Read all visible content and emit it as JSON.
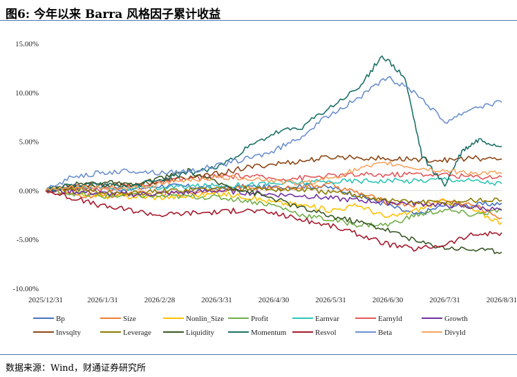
{
  "header": {
    "title": "图6: 今年以来 Barra 风格因子累计收益"
  },
  "footer": {
    "source": "数据来源：Wind，财通证券研究所"
  },
  "chart_data": {
    "type": "line",
    "title": "图6: 今年以来 Barra 风格因子累计收益",
    "xlabel": "",
    "ylabel": "",
    "x_ticks": [
      "2025/12/31",
      "2026/1/31",
      "2026/2/28",
      "2026/3/31",
      "2026/4/30",
      "2026/5/31",
      "2026/6/30",
      "2026/7/31",
      "2026/8/31"
    ],
    "y_ticks": [
      "15.00%",
      "10.00%",
      "5.00%",
      "0.00%",
      "-5.00%",
      "-10.00%"
    ],
    "ylim": [
      -10,
      15
    ],
    "grid": false,
    "legend_position": "bottom",
    "series": [
      {
        "name": "Bp",
        "color": "#4472c4",
        "points": [
          [
            0,
            0
          ],
          [
            0.5,
            0.4
          ],
          [
            1,
            0.3
          ],
          [
            1.5,
            0.1
          ],
          [
            2,
            0.5
          ],
          [
            2.5,
            0.4
          ],
          [
            3,
            0.2
          ],
          [
            3.5,
            0.4
          ],
          [
            4,
            0.3
          ],
          [
            4.5,
            0.5
          ],
          [
            5,
            0.3
          ],
          [
            5.5,
            -0.5
          ],
          [
            6,
            -1.5
          ],
          [
            6.5,
            -2.5
          ],
          [
            7,
            -1.5
          ],
          [
            7.5,
            -1.5
          ],
          [
            8,
            -1.3
          ]
        ]
      },
      {
        "name": "Size",
        "color": "#ed7d31",
        "points": [
          [
            0,
            0
          ],
          [
            0.5,
            -0.5
          ],
          [
            1,
            -0.6
          ],
          [
            1.5,
            -0.3
          ],
          [
            2,
            -0.4
          ],
          [
            2.5,
            -0.2
          ],
          [
            3,
            0.1
          ],
          [
            3.5,
            0.3
          ],
          [
            4,
            0.2
          ],
          [
            4.5,
            0.4
          ],
          [
            5,
            0.6
          ],
          [
            5.5,
            -0.3
          ],
          [
            6,
            -1.2
          ],
          [
            6.5,
            -1.5
          ],
          [
            7,
            -1.0
          ],
          [
            7.5,
            -1.5
          ],
          [
            8,
            -2.8
          ]
        ]
      },
      {
        "name": "Nonlin_Size",
        "color": "#ffc000",
        "points": [
          [
            0,
            0
          ],
          [
            0.5,
            -0.2
          ],
          [
            1,
            -0.6
          ],
          [
            1.5,
            -0.6
          ],
          [
            2,
            -0.7
          ],
          [
            2.5,
            -0.6
          ],
          [
            3,
            -0.3
          ],
          [
            3.5,
            -0.6
          ],
          [
            4,
            -1.2
          ],
          [
            4.5,
            -1.5
          ],
          [
            5,
            -2.0
          ],
          [
            5.5,
            -1.5
          ],
          [
            6,
            -2.8
          ],
          [
            6.5,
            -2.0
          ],
          [
            7,
            -1.0
          ],
          [
            7.5,
            -2.0
          ],
          [
            8,
            -3.3
          ]
        ]
      },
      {
        "name": "Profit",
        "color": "#70ad47",
        "points": [
          [
            0,
            0
          ],
          [
            0.5,
            -0.3
          ],
          [
            1,
            -0.6
          ],
          [
            1.5,
            -0.5
          ],
          [
            2,
            -0.6
          ],
          [
            2.5,
            -0.6
          ],
          [
            3,
            -0.7
          ],
          [
            3.5,
            -1.0
          ],
          [
            4,
            -1.5
          ],
          [
            4.5,
            -2.5
          ],
          [
            5,
            -3.0
          ],
          [
            5.5,
            -3.5
          ],
          [
            6,
            -3.5
          ],
          [
            6.5,
            -2.5
          ],
          [
            7,
            -2.0
          ],
          [
            7.5,
            -2.5
          ],
          [
            8,
            -2.0
          ]
        ]
      },
      {
        "name": "Earnvar",
        "color": "#2ec4b6",
        "points": [
          [
            0,
            0
          ],
          [
            0.5,
            0.3
          ],
          [
            1,
            0.4
          ],
          [
            1.5,
            0.2
          ],
          [
            2,
            0.3
          ],
          [
            2.5,
            0.4
          ],
          [
            3,
            0.5
          ],
          [
            3.5,
            0.6
          ],
          [
            4,
            0.7
          ],
          [
            4.5,
            0.8
          ],
          [
            5,
            0.9
          ],
          [
            5.5,
            1.0
          ],
          [
            6,
            1.0
          ],
          [
            6.5,
            1.0
          ],
          [
            7,
            1.2
          ],
          [
            7.5,
            1.0
          ],
          [
            8,
            0.7
          ]
        ]
      },
      {
        "name": "Earnyld",
        "color": "#e15759",
        "points": [
          [
            0,
            0
          ],
          [
            0.5,
            0.2
          ],
          [
            1,
            0.1
          ],
          [
            1.5,
            0.5
          ],
          [
            2,
            0.8
          ],
          [
            2.5,
            1.2
          ],
          [
            3,
            1.4
          ],
          [
            3.5,
            1.5
          ],
          [
            4,
            1.2
          ],
          [
            4.5,
            1.3
          ],
          [
            5,
            1.5
          ],
          [
            5.5,
            1.6
          ],
          [
            6,
            1.6
          ],
          [
            6.5,
            1.7
          ],
          [
            7,
            1.6
          ],
          [
            7.5,
            1.4
          ],
          [
            8,
            1.4
          ]
        ]
      },
      {
        "name": "Growth",
        "color": "#7030a0",
        "points": [
          [
            0,
            0
          ],
          [
            0.5,
            -0.1
          ],
          [
            1,
            -0.3
          ],
          [
            1.5,
            -0.4
          ],
          [
            2,
            -0.3
          ],
          [
            2.5,
            -0.2
          ],
          [
            3,
            0.0
          ],
          [
            3.5,
            -0.2
          ],
          [
            4,
            -0.4
          ],
          [
            4.5,
            -0.5
          ],
          [
            5,
            -0.8
          ],
          [
            5.5,
            -1.0
          ],
          [
            6,
            -1.2
          ],
          [
            6.5,
            -1.3
          ],
          [
            7,
            -1.5
          ],
          [
            7.5,
            -1.7
          ],
          [
            8,
            -2.0
          ]
        ]
      },
      {
        "name": "Invsqlty",
        "color": "#8b4513",
        "points": [
          [
            0,
            0
          ],
          [
            0.5,
            0.5
          ],
          [
            1,
            0.6
          ],
          [
            1.5,
            0.6
          ],
          [
            2,
            0.9
          ],
          [
            2.5,
            1.3
          ],
          [
            3,
            1.7
          ],
          [
            3.5,
            2.3
          ],
          [
            4,
            2.7
          ],
          [
            4.5,
            3.0
          ],
          [
            5,
            3.4
          ],
          [
            5.5,
            3.4
          ],
          [
            6,
            3.2
          ],
          [
            6.5,
            3.2
          ],
          [
            7,
            3.1
          ],
          [
            7.5,
            3.3
          ],
          [
            8,
            3.2
          ]
        ]
      },
      {
        "name": "Leverage",
        "color": "#8c7a00",
        "points": [
          [
            0,
            0
          ],
          [
            0.5,
            0.2
          ],
          [
            1,
            -0.2
          ],
          [
            1.5,
            -0.3
          ],
          [
            2,
            -0.1
          ],
          [
            2.5,
            0.1
          ],
          [
            3,
            0.2
          ],
          [
            3.5,
            0.2
          ],
          [
            4,
            0.1
          ],
          [
            4.5,
            0.1
          ],
          [
            5,
            -0.2
          ],
          [
            5.5,
            -0.5
          ],
          [
            6,
            -1.0
          ],
          [
            6.5,
            -1.2
          ],
          [
            7,
            -1.2
          ],
          [
            7.5,
            -1.0
          ],
          [
            8,
            -1.0
          ]
        ]
      },
      {
        "name": "Liquidity",
        "color": "#375623",
        "points": [
          [
            0,
            0
          ],
          [
            0.5,
            0.6
          ],
          [
            1,
            0.9
          ],
          [
            1.5,
            0.5
          ],
          [
            2,
            1.2
          ],
          [
            2.5,
            2.0
          ],
          [
            3,
            0.8
          ],
          [
            3.5,
            0.0
          ],
          [
            4,
            -0.8
          ],
          [
            4.5,
            -1.8
          ],
          [
            5,
            -2.6
          ],
          [
            5.5,
            -3.2
          ],
          [
            6,
            -4.0
          ],
          [
            6.5,
            -5.2
          ],
          [
            7,
            -5.8
          ],
          [
            7.5,
            -6.0
          ],
          [
            8,
            -6.3
          ]
        ]
      },
      {
        "name": "Momentum",
        "color": "#1b6f66",
        "points": [
          [
            0,
            0
          ],
          [
            0.5,
            0.6
          ],
          [
            1,
            0.6
          ],
          [
            1.5,
            0.5
          ],
          [
            2,
            1.0
          ],
          [
            2.5,
            1.8
          ],
          [
            3,
            2.3
          ],
          [
            3.5,
            4.2
          ],
          [
            4,
            5.8
          ],
          [
            4.5,
            6.5
          ],
          [
            5,
            8.5
          ],
          [
            5.5,
            10.5
          ],
          [
            5.9,
            13.8
          ],
          [
            6.3,
            11.5
          ],
          [
            6.6,
            3.5
          ],
          [
            7,
            0.5
          ],
          [
            7.3,
            4.0
          ],
          [
            7.6,
            5.2
          ],
          [
            8,
            4.5
          ]
        ]
      },
      {
        "name": "Resvol",
        "color": "#a5182b",
        "points": [
          [
            0,
            0
          ],
          [
            0.5,
            -0.8
          ],
          [
            1,
            -1.6
          ],
          [
            1.5,
            -2.0
          ],
          [
            2,
            -2.5
          ],
          [
            2.5,
            -2.3
          ],
          [
            3,
            -2.2
          ],
          [
            3.5,
            -2.0
          ],
          [
            4,
            -2.3
          ],
          [
            4.5,
            -3.0
          ],
          [
            5,
            -3.6
          ],
          [
            5.5,
            -4.5
          ],
          [
            6,
            -5.5
          ],
          [
            6.5,
            -6.0
          ],
          [
            7,
            -5.5
          ],
          [
            7.5,
            -4.5
          ],
          [
            8,
            -4.3
          ]
        ]
      },
      {
        "name": "Beta",
        "color": "#6b8fce",
        "points": [
          [
            0,
            0
          ],
          [
            0.5,
            1.5
          ],
          [
            1,
            1.8
          ],
          [
            1.5,
            2.0
          ],
          [
            2,
            1.8
          ],
          [
            2.5,
            2.0
          ],
          [
            3,
            2.5
          ],
          [
            3.5,
            3.2
          ],
          [
            4,
            4.0
          ],
          [
            4.5,
            5.6
          ],
          [
            5,
            7.8
          ],
          [
            5.5,
            9.5
          ],
          [
            6,
            11.5
          ],
          [
            6.5,
            10.0
          ],
          [
            7,
            7.0
          ],
          [
            7.5,
            8.5
          ],
          [
            8,
            9.0
          ]
        ]
      },
      {
        "name": "Divyld",
        "color": "#f4a460",
        "points": [
          [
            0,
            0
          ],
          [
            0.5,
            0.3
          ],
          [
            1,
            0.3
          ],
          [
            1.5,
            0.2
          ],
          [
            2,
            0.6
          ],
          [
            2.5,
            1.1
          ],
          [
            3,
            1.3
          ],
          [
            3.5,
            1.3
          ],
          [
            4,
            1.0
          ],
          [
            4.5,
            0.7
          ],
          [
            5,
            1.3
          ],
          [
            5.5,
            2.2
          ],
          [
            6,
            2.8
          ],
          [
            6.5,
            2.3
          ],
          [
            7,
            2.0
          ],
          [
            7.5,
            1.8
          ],
          [
            8,
            1.7
          ]
        ]
      }
    ]
  }
}
